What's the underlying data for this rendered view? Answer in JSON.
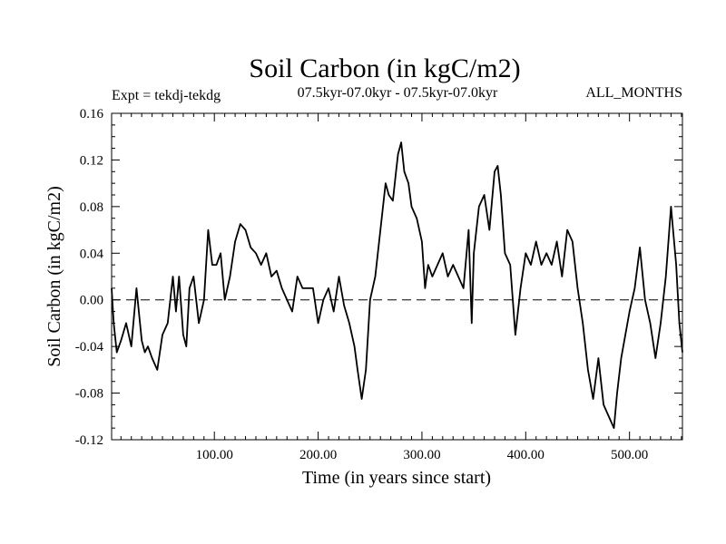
{
  "chart_data": {
    "type": "line",
    "title": "Soil Carbon (in kgC/m2)",
    "subtitle_left": "Expt = tekdj-tekdg",
    "subtitle_center": "07.5kyr-07.0kyr - 07.5kyr-07.0kyr",
    "subtitle_right": "ALL_MONTHS",
    "xlabel": "Time (in years since start)",
    "ylabel": "Soil Carbon (in kgC/m2)",
    "xlim": [
      1,
      551
    ],
    "ylim": [
      -0.12,
      0.16
    ],
    "xticks": [
      100,
      200,
      300,
      400,
      500
    ],
    "xtick_labels": [
      "100.00",
      "200.00",
      "300.00",
      "400.00",
      "500.00"
    ],
    "yticks": [
      -0.12,
      -0.08,
      -0.04,
      0.0,
      0.04,
      0.08,
      0.12,
      0.16
    ],
    "ytick_labels": [
      "-0.12",
      "-0.08",
      "-0.04",
      "0.00",
      "0.04",
      "0.08",
      "0.12",
      "0.16"
    ],
    "reference_line": {
      "y": 0.0,
      "style": "dashed"
    },
    "series": [
      {
        "name": "Soil Carbon",
        "x": [
          1,
          3,
          6,
          10,
          15,
          20,
          25,
          30,
          33,
          36,
          40,
          45,
          50,
          55,
          60,
          63,
          66,
          70,
          73,
          76,
          80,
          85,
          90,
          94,
          98,
          102,
          106,
          110,
          115,
          120,
          125,
          130,
          135,
          140,
          145,
          150,
          155,
          160,
          165,
          170,
          175,
          180,
          185,
          190,
          195,
          200,
          205,
          210,
          215,
          220,
          225,
          230,
          235,
          238,
          242,
          246,
          250,
          255,
          260,
          265,
          268,
          272,
          275,
          277,
          280,
          283,
          287,
          290,
          295,
          300,
          303,
          306,
          310,
          315,
          320,
          325,
          330,
          335,
          340,
          345,
          348,
          350,
          355,
          360,
          365,
          370,
          373,
          376,
          380,
          385,
          390,
          395,
          400,
          405,
          410,
          415,
          420,
          425,
          430,
          435,
          440,
          445,
          450,
          455,
          460,
          465,
          470,
          475,
          480,
          485,
          488,
          492,
          496,
          500,
          505,
          510,
          515,
          520,
          525,
          530,
          535,
          540,
          545,
          548,
          551
        ],
        "values": [
          0.01,
          -0.02,
          -0.045,
          -0.035,
          -0.02,
          -0.04,
          0.01,
          -0.035,
          -0.045,
          -0.04,
          -0.05,
          -0.06,
          -0.03,
          -0.02,
          0.02,
          -0.01,
          0.02,
          -0.03,
          -0.04,
          0.01,
          0.02,
          -0.02,
          0.0,
          0.06,
          0.03,
          0.03,
          0.04,
          0.0,
          0.02,
          0.05,
          0.065,
          0.06,
          0.045,
          0.04,
          0.03,
          0.04,
          0.02,
          0.025,
          0.01,
          0.0,
          -0.01,
          0.02,
          0.01,
          0.01,
          0.01,
          -0.02,
          0.0,
          0.01,
          -0.01,
          0.02,
          -0.005,
          -0.02,
          -0.04,
          -0.06,
          -0.085,
          -0.06,
          0.0,
          0.02,
          0.06,
          0.1,
          0.09,
          0.085,
          0.11,
          0.125,
          0.135,
          0.11,
          0.1,
          0.08,
          0.07,
          0.05,
          0.01,
          0.03,
          0.02,
          0.03,
          0.04,
          0.02,
          0.03,
          0.02,
          0.01,
          0.06,
          -0.02,
          0.04,
          0.08,
          0.09,
          0.06,
          0.11,
          0.115,
          0.09,
          0.04,
          0.03,
          -0.03,
          0.01,
          0.04,
          0.03,
          0.05,
          0.03,
          0.04,
          0.03,
          0.05,
          0.02,
          0.06,
          0.05,
          0.01,
          -0.02,
          -0.06,
          -0.085,
          -0.05,
          -0.09,
          -0.1,
          -0.11,
          -0.08,
          -0.05,
          -0.03,
          -0.01,
          0.01,
          0.045,
          0.0,
          -0.02,
          -0.05,
          -0.02,
          0.02,
          0.08,
          0.03,
          -0.02,
          -0.045
        ]
      }
    ]
  }
}
